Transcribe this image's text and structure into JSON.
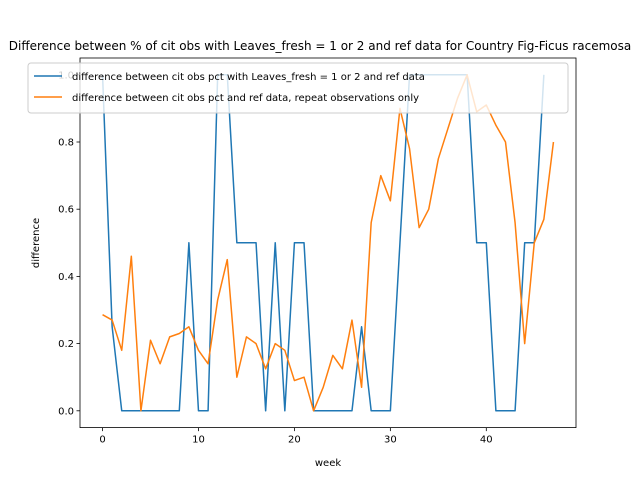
{
  "chart_data": {
    "type": "line",
    "title": "Difference between % of cit obs with Leaves_fresh = 1 or 2 and ref data for Country Fig-Ficus racemosa",
    "xlabel": "week",
    "ylabel": "difference",
    "xlim": [
      -2.35,
      49.35
    ],
    "ylim": [
      -0.05,
      1.05
    ],
    "xticks": [
      0,
      10,
      20,
      30,
      40
    ],
    "yticks": [
      0.0,
      0.2,
      0.4,
      0.6,
      0.8,
      1.0
    ],
    "yticklabels": [
      "0.0",
      "0.2",
      "0.4",
      "0.6",
      "0.8",
      "1.0"
    ],
    "grid": false,
    "legend_position": "top-center",
    "series": [
      {
        "name": "difference between cit obs pct with Leaves_fresh = 1 or 2 and ref data",
        "color": "#1f77b4",
        "x": [
          0,
          1,
          2,
          3,
          4,
          5,
          6,
          7,
          8,
          9,
          10,
          11,
          12,
          13,
          14,
          15,
          16,
          17,
          18,
          19,
          20,
          21,
          22,
          23,
          24,
          25,
          26,
          27,
          28,
          29,
          30,
          31,
          32,
          33,
          34,
          35,
          36,
          37,
          38,
          39,
          40,
          41,
          42,
          43,
          44,
          45,
          46
        ],
        "y": [
          1.0,
          0.25,
          0,
          0,
          0,
          0,
          0,
          0,
          0,
          0.5,
          0,
          0,
          1.0,
          1.0,
          0.5,
          0.5,
          0.5,
          0,
          0.5,
          0,
          0.5,
          0.5,
          0,
          0,
          0,
          0,
          0,
          0.25,
          0,
          0,
          0,
          0.5,
          1.0,
          1.0,
          1.0,
          1.0,
          1.0,
          1.0,
          1.0,
          0.5,
          0.5,
          0,
          0,
          0,
          0.5,
          0.5,
          1.0
        ]
      },
      {
        "name": "difference between cit obs pct and ref data, repeat observations only",
        "color": "#ff7f0e",
        "x": [
          0,
          1,
          2,
          3,
          4,
          5,
          6,
          7,
          8,
          9,
          10,
          11,
          12,
          13,
          14,
          15,
          16,
          17,
          18,
          19,
          20,
          21,
          22,
          23,
          24,
          25,
          26,
          27,
          28,
          29,
          30,
          31,
          32,
          33,
          34,
          35,
          36,
          37,
          38,
          39,
          40,
          41,
          42,
          43,
          44,
          45,
          46,
          47
        ],
        "y": [
          0.286,
          0.27,
          0.18,
          0.46,
          0,
          0.21,
          0.14,
          0.22,
          0.23,
          0.25,
          0.18,
          0.14,
          0.33,
          0.45,
          0.1,
          0.22,
          0.2,
          0.125,
          0.2,
          0.18,
          0.09,
          0.1,
          0,
          0.07,
          0.165,
          0.125,
          0.27,
          0.07,
          0.56,
          0.7,
          0.625,
          0.9,
          0.78,
          0.545,
          0.6,
          0.75,
          0.84,
          0.93,
          1.0,
          0.89,
          0.91,
          0.85,
          0.8,
          0.56,
          0.2,
          0.5,
          0.57,
          0.8
        ]
      }
    ]
  }
}
